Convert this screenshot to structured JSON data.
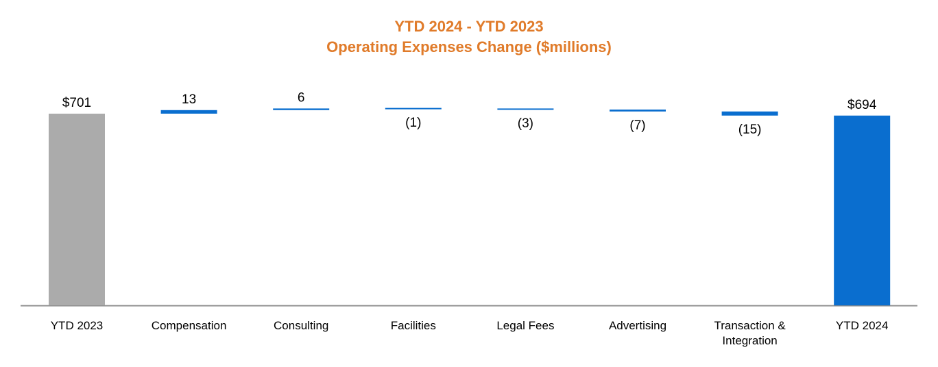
{
  "chart_data": {
    "type": "waterfall",
    "title": "YTD 2024 - YTD 2023",
    "subtitle": "Operating Expenses Change ($millions)",
    "categories": [
      "YTD 2023",
      "Compensation",
      "Consulting",
      "Facilities",
      "Legal Fees",
      "Advertising",
      "Transaction &\nIntegration",
      "YTD 2024"
    ],
    "values": [
      701,
      13,
      6,
      -1,
      -3,
      -7,
      -15,
      694
    ],
    "kinds": [
      "total",
      "delta",
      "delta",
      "delta",
      "delta",
      "delta",
      "delta",
      "total"
    ],
    "value_labels": [
      "$701",
      "13",
      "6",
      "(1)",
      "(3)",
      "(7)",
      "(15)",
      "$694"
    ],
    "colors": {
      "start_total": "#ABABAB",
      "end_total": "#0A6ECF",
      "change": "#0A6ECF",
      "title": "#E07B2A",
      "axis": "#8C8C8C"
    },
    "ylim": [
      0,
      701
    ]
  }
}
